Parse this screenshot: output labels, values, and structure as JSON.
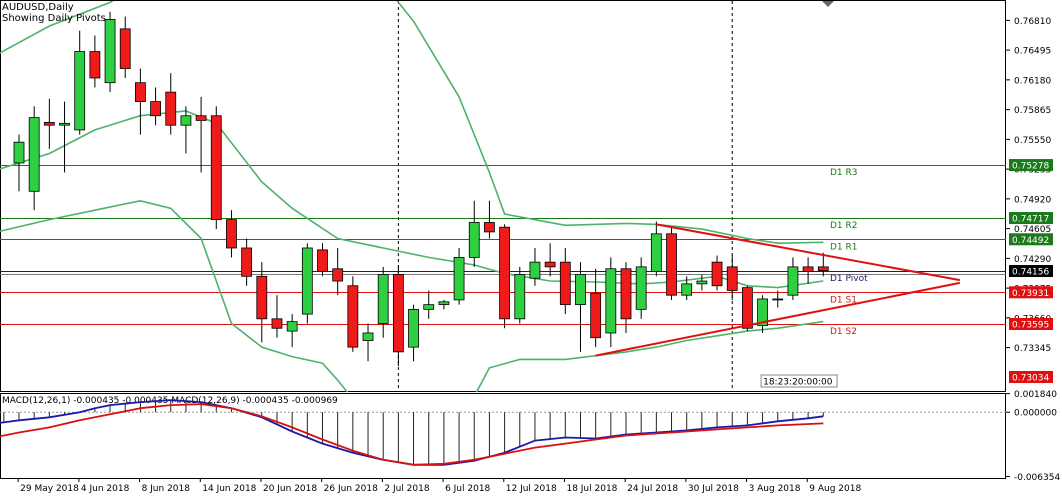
{
  "header": {
    "symbol_line": "AUDUSD,Daily",
    "pivot_line": "Showing Daily Pivots"
  },
  "colors": {
    "bull": "#2fcf44",
    "bear": "#ef1a1a",
    "band": "#4db36a",
    "pivot_green": "#1a7a1a",
    "pivot_red": "#e01010",
    "macd_main": "#1a1aa8",
    "macd_signal": "#d81010",
    "hist": "#222222",
    "trend": "#e01010"
  },
  "chart_data": [
    {
      "type": "candlestick",
      "title": "AUDUSD,Daily",
      "subtitle": "Showing Daily Pivots",
      "xlabel": "",
      "ylabel": "",
      "ylim": [
        0.72875,
        0.77015
      ],
      "grid": false,
      "x_tick_labels": [
        {
          "label": "29 May 2018",
          "index": 1
        },
        {
          "label": "4 Jun 2018",
          "index": 5
        },
        {
          "label": "8 Jun 2018",
          "index": 9
        },
        {
          "label": "14 Jun 2018",
          "index": 13
        },
        {
          "label": "20 Jun 2018",
          "index": 17
        },
        {
          "label": "26 Jun 2018",
          "index": 21
        },
        {
          "label": "2 Jul 2018",
          "index": 25
        },
        {
          "label": "6 Jul 2018",
          "index": 29
        },
        {
          "label": "12 Jul 2018",
          "index": 33
        },
        {
          "label": "18 Jul 2018",
          "index": 37
        },
        {
          "label": "24 Jul 2018",
          "index": 41
        },
        {
          "label": "30 Jul 2018",
          "index": 45
        },
        {
          "label": "3 Aug 2018",
          "index": 49
        },
        {
          "label": "9 Aug 2018",
          "index": 53
        }
      ],
      "y_tick_labels": [
        "0.76810",
        "0.76495",
        "0.76180",
        "0.75865",
        "0.75550",
        "0.75235",
        "0.74920",
        "0.74605",
        "0.74290",
        "0.73975",
        "0.73660",
        "0.73345"
      ],
      "y_tick_values": [
        0.7681,
        0.76495,
        0.7618,
        0.75865,
        0.7555,
        0.75235,
        0.7492,
        0.74605,
        0.7429,
        0.73975,
        0.7366,
        0.73345
      ],
      "period_separators": [
        25,
        47
      ],
      "candles": [
        [
          0.753,
          0.756,
          0.75,
          0.7552
        ],
        [
          0.75,
          0.759,
          0.748,
          0.7578
        ],
        [
          0.7573,
          0.7598,
          0.7545,
          0.757
        ],
        [
          0.757,
          0.7595,
          0.752,
          0.7572
        ],
        [
          0.7565,
          0.767,
          0.756,
          0.7648
        ],
        [
          0.7648,
          0.7665,
          0.761,
          0.762
        ],
        [
          0.7615,
          0.769,
          0.7605,
          0.7682
        ],
        [
          0.7672,
          0.7685,
          0.762,
          0.763
        ],
        [
          0.7615,
          0.763,
          0.756,
          0.7595
        ],
        [
          0.7595,
          0.761,
          0.757,
          0.758
        ],
        [
          0.7605,
          0.7625,
          0.756,
          0.757
        ],
        [
          0.757,
          0.759,
          0.754,
          0.758
        ],
        [
          0.758,
          0.76,
          0.752,
          0.7575
        ],
        [
          0.758,
          0.759,
          0.746,
          0.747
        ],
        [
          0.747,
          0.748,
          0.743,
          0.744
        ],
        [
          0.744,
          0.745,
          0.74,
          0.741
        ],
        [
          0.741,
          0.7425,
          0.734,
          0.7365
        ],
        [
          0.7365,
          0.739,
          0.7345,
          0.7355
        ],
        [
          0.7352,
          0.737,
          0.7335,
          0.7362
        ],
        [
          0.737,
          0.7445,
          0.736,
          0.744
        ],
        [
          0.7438,
          0.7445,
          0.741,
          0.7415
        ],
        [
          0.7418,
          0.744,
          0.739,
          0.7405
        ],
        [
          0.74,
          0.741,
          0.733,
          0.7335
        ],
        [
          0.7342,
          0.736,
          0.732,
          0.735
        ],
        [
          0.736,
          0.742,
          0.7345,
          0.7412
        ],
        [
          0.7412,
          0.7422,
          0.7315,
          0.733
        ],
        [
          0.7335,
          0.738,
          0.732,
          0.7375
        ],
        [
          0.7375,
          0.7395,
          0.7365,
          0.738
        ],
        [
          0.738,
          0.7385,
          0.7375,
          0.7383
        ],
        [
          0.7385,
          0.744,
          0.738,
          0.743
        ],
        [
          0.743,
          0.749,
          0.742,
          0.7467
        ],
        [
          0.7467,
          0.749,
          0.745,
          0.7457
        ],
        [
          0.7462,
          0.7465,
          0.7355,
          0.7365
        ],
        [
          0.7365,
          0.742,
          0.736,
          0.7412
        ],
        [
          0.7408,
          0.744,
          0.74,
          0.7425
        ],
        [
          0.7425,
          0.7445,
          0.741,
          0.742
        ],
        [
          0.7425,
          0.744,
          0.737,
          0.738
        ],
        [
          0.738,
          0.7425,
          0.733,
          0.7412
        ],
        [
          0.7392,
          0.7418,
          0.7335,
          0.7345
        ],
        [
          0.735,
          0.743,
          0.7335,
          0.7418
        ],
        [
          0.7418,
          0.7425,
          0.735,
          0.7365
        ],
        [
          0.7375,
          0.743,
          0.7365,
          0.742
        ],
        [
          0.7415,
          0.7468,
          0.741,
          0.7455
        ],
        [
          0.7455,
          0.7462,
          0.7385,
          0.739
        ],
        [
          0.739,
          0.741,
          0.7385,
          0.7402
        ],
        [
          0.7402,
          0.7412,
          0.7395,
          0.7405
        ],
        [
          0.7425,
          0.7432,
          0.7395,
          0.74
        ],
        [
          0.742,
          0.7432,
          0.7385,
          0.7395
        ],
        [
          0.7398,
          0.74,
          0.7352,
          0.7355
        ],
        [
          0.7358,
          0.739,
          0.735,
          0.7386
        ],
        [
          0.7386,
          0.7395,
          0.7377,
          0.7385
        ],
        [
          0.739,
          0.743,
          0.7385,
          0.742
        ],
        [
          0.742,
          0.743,
          0.7402,
          0.7415
        ],
        [
          0.742,
          0.7435,
          0.741,
          0.7416
        ]
      ],
      "bollinger_bands": {
        "upper": [
          [
            -6,
            0.7605
          ],
          [
            -2,
            0.764
          ],
          [
            2,
            0.7675
          ],
          [
            6,
            0.77
          ],
          [
            12,
            0.776
          ],
          [
            18,
            0.785
          ],
          [
            25,
            0.77
          ],
          [
            26,
            0.768
          ],
          [
            29,
            0.76
          ],
          [
            31,
            0.752
          ],
          [
            32,
            0.7476
          ],
          [
            36,
            0.7464
          ],
          [
            40,
            0.7466
          ],
          [
            42,
            0.7465
          ],
          [
            45,
            0.746
          ],
          [
            48,
            0.745
          ],
          [
            50,
            0.7445
          ],
          [
            53,
            0.7446
          ]
        ],
        "middle": [
          [
            -6,
            0.7505
          ],
          [
            -2,
            0.752
          ],
          [
            2,
            0.754
          ],
          [
            5,
            0.7565
          ],
          [
            8,
            0.758
          ],
          [
            11,
            0.7585
          ],
          [
            13,
            0.7572
          ],
          [
            16,
            0.751
          ],
          [
            18,
            0.7482
          ],
          [
            21,
            0.745
          ],
          [
            24,
            0.744
          ],
          [
            27,
            0.743
          ],
          [
            30,
            0.7422
          ],
          [
            32,
            0.7413
          ],
          [
            35,
            0.7405
          ],
          [
            38,
            0.7404
          ],
          [
            41,
            0.7402
          ],
          [
            43,
            0.7404
          ],
          [
            46,
            0.741
          ],
          [
            48,
            0.74
          ],
          [
            50,
            0.7398
          ],
          [
            53,
            0.7405
          ]
        ],
        "lower": [
          [
            -6,
            0.7452
          ],
          [
            -2,
            0.7455
          ],
          [
            2,
            0.747
          ],
          [
            5,
            0.748
          ],
          [
            8,
            0.749
          ],
          [
            10,
            0.7482
          ],
          [
            12,
            0.745
          ],
          [
            14,
            0.736
          ],
          [
            16,
            0.7335
          ],
          [
            18,
            0.7325
          ],
          [
            20,
            0.7318
          ],
          [
            21,
            0.73
          ],
          [
            22,
            0.728
          ],
          [
            30,
            0.7283
          ],
          [
            31,
            0.7313
          ],
          [
            33,
            0.7322
          ],
          [
            36,
            0.7322
          ],
          [
            40,
            0.733
          ],
          [
            42,
            0.7335
          ],
          [
            44,
            0.7342
          ],
          [
            46,
            0.7347
          ],
          [
            48,
            0.7352
          ],
          [
            50,
            0.7355
          ],
          [
            53,
            0.7362
          ]
        ]
      },
      "pivot_levels": [
        {
          "label": "D1 R3",
          "value": 0.75278,
          "tag": "0.75278",
          "color": "green"
        },
        {
          "label": "D1 R2",
          "value": 0.74717,
          "tag": "0.74717",
          "color": "green"
        },
        {
          "label": "D1 R1",
          "value": 0.74492,
          "tag": "0.74492",
          "color": "green"
        },
        {
          "label": "D1 Pivot",
          "value": 0.74156,
          "tag": "0.74156",
          "color": "black"
        },
        {
          "label": "D1 S1",
          "value": 0.73931,
          "tag": "0.73931",
          "color": "red"
        },
        {
          "label": "D1 S2",
          "value": 0.73595,
          "tag": "0.73595",
          "color": "red"
        }
      ],
      "extra_price_tags": [
        {
          "value": 0.73034,
          "tag": "0.73034"
        }
      ],
      "trend_lines": [
        {
          "from": [
            42,
            0.7465
          ],
          "to": [
            62,
            0.7406
          ]
        },
        {
          "from": [
            38,
            0.7326
          ],
          "to": [
            62,
            0.7403
          ]
        }
      ],
      "countdown_label": "18:23:20:00:00"
    },
    {
      "type": "macd",
      "title": "MACD(12,26,1) -0.000435 -0.000435 MACD(12,26,9) -0.000435 -0.000969",
      "ylim": [
        -0.0065,
        0.0019
      ],
      "y_tick_labels": [
        "0.001840",
        "0.000000",
        "-0.006354"
      ],
      "y_tick_values": [
        0.00184,
        0.0,
        -0.006354
      ],
      "main_line": [
        [
          -2,
          -0.0012
        ],
        [
          0,
          -0.0008
        ],
        [
          2,
          -0.0005
        ],
        [
          4,
          0.0
        ],
        [
          5,
          0.0004
        ],
        [
          6,
          0.0007
        ],
        [
          8,
          0.001
        ],
        [
          10,
          0.0012
        ],
        [
          12,
          0.001
        ],
        [
          14,
          0.0004
        ],
        [
          16,
          -0.0005
        ],
        [
          18,
          -0.0019
        ],
        [
          20,
          -0.0031
        ],
        [
          22,
          -0.004
        ],
        [
          24,
          -0.0047
        ],
        [
          26,
          -0.0052
        ],
        [
          28,
          -0.0052
        ],
        [
          30,
          -0.0048
        ],
        [
          32,
          -0.004
        ],
        [
          34,
          -0.0028
        ],
        [
          36,
          -0.0025
        ],
        [
          38,
          -0.0026
        ],
        [
          40,
          -0.0022
        ],
        [
          42,
          -0.002
        ],
        [
          44,
          -0.0018
        ],
        [
          46,
          -0.0015
        ],
        [
          48,
          -0.0013
        ],
        [
          50,
          -0.0009
        ],
        [
          52,
          -0.0006
        ],
        [
          53,
          -0.0004
        ]
      ],
      "signal_line": [
        [
          -2,
          -0.0026
        ],
        [
          0,
          -0.002
        ],
        [
          2,
          -0.0015
        ],
        [
          4,
          -0.0008
        ],
        [
          6,
          -0.0002
        ],
        [
          8,
          0.0004
        ],
        [
          10,
          0.0007
        ],
        [
          12,
          0.0008
        ],
        [
          14,
          0.0004
        ],
        [
          16,
          -0.0004
        ],
        [
          18,
          -0.0015
        ],
        [
          20,
          -0.0027
        ],
        [
          22,
          -0.0038
        ],
        [
          24,
          -0.0047
        ],
        [
          26,
          -0.0052
        ],
        [
          28,
          -0.0051
        ],
        [
          30,
          -0.0047
        ],
        [
          32,
          -0.0041
        ],
        [
          34,
          -0.0035
        ],
        [
          36,
          -0.0031
        ],
        [
          38,
          -0.0027
        ],
        [
          40,
          -0.0023
        ],
        [
          42,
          -0.0021
        ],
        [
          44,
          -0.0019
        ],
        [
          46,
          -0.0017
        ],
        [
          48,
          -0.0015
        ],
        [
          50,
          -0.0013
        ],
        [
          53,
          -0.0011
        ]
      ]
    }
  ]
}
